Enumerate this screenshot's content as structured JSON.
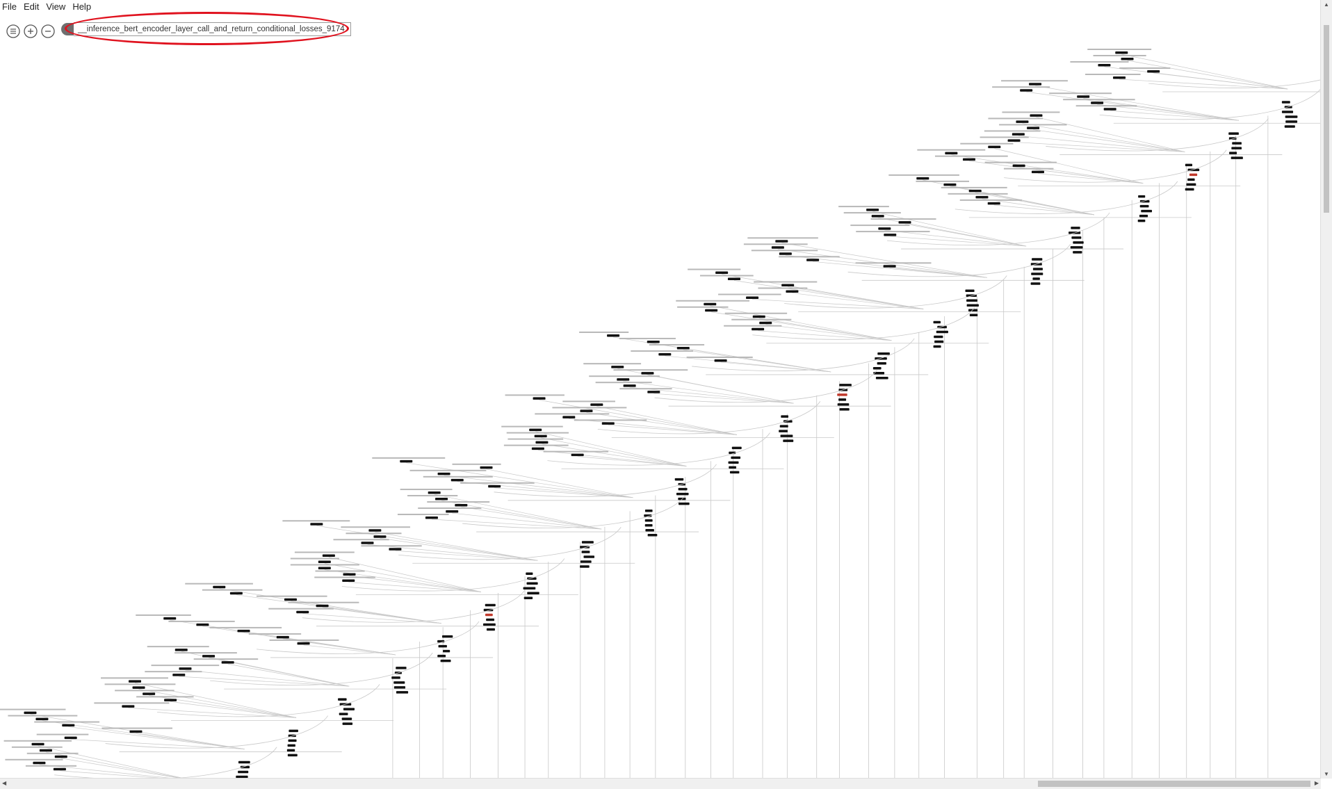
{
  "menu": [
    "File",
    "Edit",
    "View",
    "Help"
  ],
  "toolbar": {
    "sidebar_icon": "list-icon",
    "zoom_in_icon": "zoom-in-icon",
    "zoom_out_icon": "zoom-out-icon"
  },
  "breadcrumb": {
    "text": "__inference_bert_encoder_layer_call_and_return_conditional_losses_9174"
  },
  "colors": {
    "highlight": "#e0121e",
    "node": "#111111",
    "edge": "#c8c8c8",
    "accent_node": "#c0392b"
  }
}
